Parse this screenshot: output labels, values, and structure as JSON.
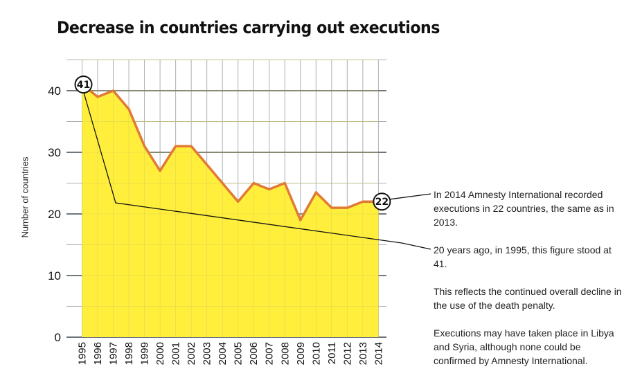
{
  "chart_data": {
    "type": "area",
    "title": "Decrease in countries carrying out executions",
    "ylabel": "Number of countries",
    "x": [
      1995,
      1996,
      1997,
      1998,
      1999,
      2000,
      2001,
      2002,
      2003,
      2004,
      2005,
      2006,
      2007,
      2008,
      2009,
      2010,
      2011,
      2012,
      2013,
      2014
    ],
    "values": [
      41,
      39,
      40,
      37,
      31,
      27,
      31,
      31,
      28,
      25,
      22,
      25,
      24,
      25,
      19,
      23.5,
      21,
      21,
      22,
      22
    ],
    "ylim": [
      0,
      45
    ],
    "yticks": [
      0,
      10,
      20,
      30,
      40
    ],
    "grid": true,
    "colors": {
      "fill": "#FFEF3C",
      "line": "#E07A35",
      "grid_major": "#6E767C",
      "grid_minor": "#A9B0B5"
    },
    "markers": [
      {
        "year": 1995,
        "label": "41"
      },
      {
        "year": 2014,
        "label": "22"
      }
    ]
  },
  "notes": [
    "In 2014 Amnesty International recorded executions in 22 countries, the same as in 2013.",
    "20 years ago, in 1995, this figure stood at 41.",
    "This reflects the continued overall decline in the use of the death penalty.",
    "Executions may have taken place in Libya and Syria, although none could be confirmed by Amnesty International."
  ]
}
